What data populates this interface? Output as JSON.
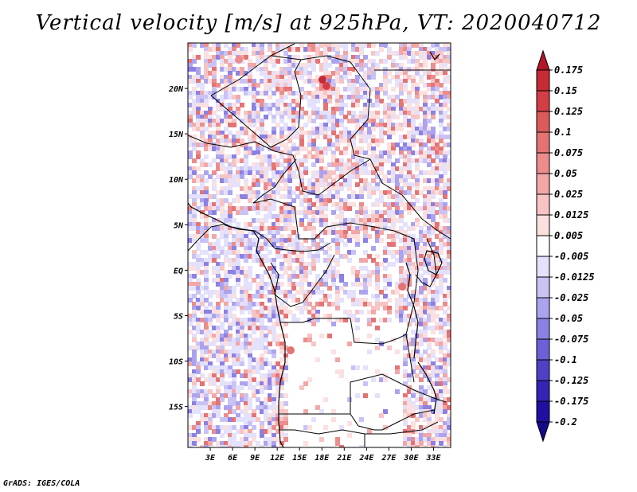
{
  "chart_data": {
    "type": "heatmap",
    "title": "Vertical velocity [m/s] at 925hPa, VT: 2020040712",
    "variable": "Vertical velocity",
    "units": "m/s",
    "level": "925hPa",
    "valid_time": "2020040712",
    "xlabel": "",
    "ylabel": "",
    "x_ticks": [
      "3E",
      "6E",
      "9E",
      "12E",
      "15E",
      "18E",
      "21E",
      "24E",
      "27E",
      "30E",
      "33E"
    ],
    "x_tick_values": [
      3,
      6,
      9,
      12,
      15,
      18,
      21,
      24,
      27,
      30,
      33
    ],
    "y_ticks": [
      "20N",
      "15N",
      "10N",
      "5N",
      "EQ",
      "5S",
      "10S",
      "15S"
    ],
    "y_tick_values": [
      20,
      15,
      10,
      5,
      0,
      -5,
      -10,
      -15
    ],
    "xlim": [
      0,
      35.3
    ],
    "ylim": [
      -19.5,
      25
    ],
    "grid": false,
    "colorbar": {
      "levels": [
        "0.175",
        "0.15",
        "0.125",
        "0.1",
        "0.075",
        "0.05",
        "0.025",
        "0.0125",
        "0.005",
        "-0.005",
        "-0.0125",
        "-0.025",
        "-0.05",
        "-0.075",
        "-0.1",
        "-0.125",
        "-0.175",
        "-0.2"
      ],
      "colors": [
        "#b2182b",
        "#c62b36",
        "#d43d45",
        "#de5a5a",
        "#e57373",
        "#ec8c8c",
        "#f2a7a7",
        "#f7c4c4",
        "#fbe0e0",
        "#ffffff",
        "#e3e1fb",
        "#c9c3f5",
        "#aba3ee",
        "#8c80e3",
        "#6d5fd6",
        "#5040c7",
        "#3424b5",
        "#1f10a3",
        "#140a8c"
      ],
      "placement": "right"
    }
  },
  "credit": "GrADS: IGES/COLA"
}
